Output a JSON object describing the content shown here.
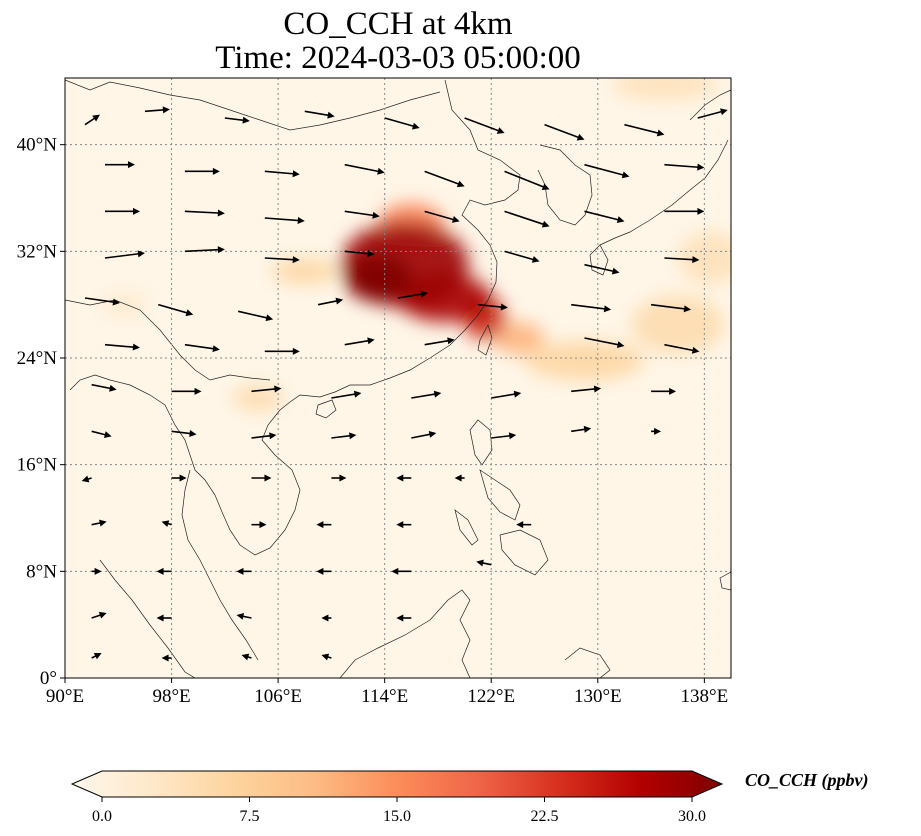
{
  "title": {
    "line1": "CO_CCH at 4km",
    "line2": "Time: 2024-03-03 05:00:00"
  },
  "map": {
    "extent": {
      "lon_min": 90,
      "lon_max": 140,
      "lat_min": 0,
      "lat_max": 45
    },
    "lat_ticks": [
      {
        "value": 40,
        "label": "40°N"
      },
      {
        "value": 32,
        "label": "32°N"
      },
      {
        "value": 24,
        "label": "24°N"
      },
      {
        "value": 16,
        "label": "16°N"
      },
      {
        "value": 8,
        "label": "8°N"
      },
      {
        "value": 0,
        "label": "0°"
      }
    ],
    "lon_ticks": [
      {
        "value": 90,
        "label": "90°E"
      },
      {
        "value": 98,
        "label": "98°E"
      },
      {
        "value": 106,
        "label": "106°E"
      },
      {
        "value": 114,
        "label": "114°E"
      },
      {
        "value": 122,
        "label": "122°E"
      },
      {
        "value": 130,
        "label": "130°E"
      },
      {
        "value": 138,
        "label": "138°E"
      }
    ],
    "gridlines": true,
    "background_color": "#fff6e8",
    "plumes": [
      {
        "lon": 115.5,
        "lat": 31.0,
        "rlon": 4.8,
        "rlat": 3.2,
        "value": 28
      },
      {
        "lon": 113.5,
        "lat": 30.0,
        "rlon": 2.5,
        "rlat": 1.8,
        "value": 30
      },
      {
        "lon": 118.5,
        "lat": 28.5,
        "rlon": 3.5,
        "rlat": 1.8,
        "value": 27
      },
      {
        "lon": 121.5,
        "lat": 27.0,
        "rlon": 1.6,
        "rlat": 1.6,
        "value": 24
      },
      {
        "lon": 116.0,
        "lat": 34.0,
        "rlon": 2.5,
        "rlat": 1.6,
        "value": 16
      },
      {
        "lon": 124.0,
        "lat": 25.5,
        "rlon": 2.0,
        "rlat": 1.2,
        "value": 12
      },
      {
        "lon": 129.0,
        "lat": 23.8,
        "rlon": 4.5,
        "rlat": 1.5,
        "value": 7
      },
      {
        "lon": 136.0,
        "lat": 26.5,
        "rlon": 3.5,
        "rlat": 2.2,
        "value": 6
      },
      {
        "lon": 138.5,
        "lat": 31.5,
        "rlon": 2.5,
        "rlat": 2.0,
        "value": 5
      },
      {
        "lon": 135.0,
        "lat": 44.5,
        "rlon": 4.0,
        "rlat": 1.2,
        "value": 5
      },
      {
        "lon": 108.0,
        "lat": 30.5,
        "rlon": 2.5,
        "rlat": 1.0,
        "value": 7
      },
      {
        "lon": 104.5,
        "lat": 21.0,
        "rlon": 2.0,
        "rlat": 1.0,
        "value": 6
      },
      {
        "lon": 94.5,
        "lat": 28.0,
        "rlon": 1.8,
        "rlat": 1.0,
        "value": 3
      }
    ],
    "wind_vectors": [
      {
        "lon": 91.5,
        "lat": 41.5,
        "u": 1.5,
        "v": 1.0
      },
      {
        "lon": 96.0,
        "lat": 42.5,
        "u": 2.5,
        "v": 0.2
      },
      {
        "lon": 102.0,
        "lat": 42.0,
        "u": 2.5,
        "v": -0.3
      },
      {
        "lon": 108.0,
        "lat": 42.5,
        "u": 3.0,
        "v": -0.5
      },
      {
        "lon": 114.0,
        "lat": 42.0,
        "u": 3.5,
        "v": -1.0
      },
      {
        "lon": 120.0,
        "lat": 42.0,
        "u": 4.0,
        "v": -1.5
      },
      {
        "lon": 126.0,
        "lat": 41.5,
        "u": 4.0,
        "v": -1.5
      },
      {
        "lon": 132.0,
        "lat": 41.5,
        "u": 4.0,
        "v": -1.0
      },
      {
        "lon": 137.5,
        "lat": 42.0,
        "u": 3.0,
        "v": 0.8
      },
      {
        "lon": 93.0,
        "lat": 38.5,
        "u": 3.0,
        "v": 0.0
      },
      {
        "lon": 99.0,
        "lat": 38.0,
        "u": 3.5,
        "v": 0.0
      },
      {
        "lon": 105.0,
        "lat": 38.0,
        "u": 3.5,
        "v": -0.3
      },
      {
        "lon": 111.0,
        "lat": 38.5,
        "u": 4.0,
        "v": -0.8
      },
      {
        "lon": 117.0,
        "lat": 38.0,
        "u": 4.0,
        "v": -1.5
      },
      {
        "lon": 123.0,
        "lat": 38.0,
        "u": 4.5,
        "v": -1.8
      },
      {
        "lon": 129.0,
        "lat": 38.5,
        "u": 4.5,
        "v": -1.2
      },
      {
        "lon": 135.0,
        "lat": 38.5,
        "u": 4.0,
        "v": -0.3
      },
      {
        "lon": 93.0,
        "lat": 35.0,
        "u": 3.5,
        "v": 0.0
      },
      {
        "lon": 99.0,
        "lat": 35.0,
        "u": 4.0,
        "v": -0.2
      },
      {
        "lon": 105.0,
        "lat": 34.5,
        "u": 4.0,
        "v": -0.3
      },
      {
        "lon": 111.0,
        "lat": 35.0,
        "u": 3.5,
        "v": -0.5
      },
      {
        "lon": 117.0,
        "lat": 35.0,
        "u": 3.5,
        "v": -1.0
      },
      {
        "lon": 123.0,
        "lat": 35.0,
        "u": 4.5,
        "v": -1.5
      },
      {
        "lon": 129.0,
        "lat": 35.0,
        "u": 4.0,
        "v": -1.0
      },
      {
        "lon": 135.0,
        "lat": 35.0,
        "u": 4.0,
        "v": 0.0
      },
      {
        "lon": 93.0,
        "lat": 31.5,
        "u": 4.0,
        "v": 0.5
      },
      {
        "lon": 99.0,
        "lat": 32.0,
        "u": 4.0,
        "v": 0.2
      },
      {
        "lon": 105.0,
        "lat": 31.5,
        "u": 3.5,
        "v": -0.2
      },
      {
        "lon": 111.0,
        "lat": 32.0,
        "u": 3.0,
        "v": -0.3
      },
      {
        "lon": 123.0,
        "lat": 32.0,
        "u": 3.5,
        "v": -1.0
      },
      {
        "lon": 129.0,
        "lat": 31.0,
        "u": 3.5,
        "v": -0.8
      },
      {
        "lon": 135.0,
        "lat": 31.5,
        "u": 3.5,
        "v": -0.2
      },
      {
        "lon": 91.5,
        "lat": 28.5,
        "u": 3.5,
        "v": -0.5
      },
      {
        "lon": 97.0,
        "lat": 28.0,
        "u": 3.5,
        "v": -1.0
      },
      {
        "lon": 103.0,
        "lat": 27.5,
        "u": 3.5,
        "v": -0.8
      },
      {
        "lon": 109.0,
        "lat": 28.0,
        "u": 2.5,
        "v": 0.5
      },
      {
        "lon": 115.0,
        "lat": 28.5,
        "u": 3.0,
        "v": 0.5
      },
      {
        "lon": 121.0,
        "lat": 28.0,
        "u": 3.0,
        "v": -0.3
      },
      {
        "lon": 128.0,
        "lat": 28.0,
        "u": 4.0,
        "v": -0.5
      },
      {
        "lon": 134.0,
        "lat": 28.0,
        "u": 4.0,
        "v": -0.5
      },
      {
        "lon": 93.0,
        "lat": 25.0,
        "u": 3.5,
        "v": -0.3
      },
      {
        "lon": 99.0,
        "lat": 25.0,
        "u": 3.5,
        "v": -0.5
      },
      {
        "lon": 105.0,
        "lat": 24.5,
        "u": 3.5,
        "v": 0.0
      },
      {
        "lon": 111.0,
        "lat": 25.0,
        "u": 3.0,
        "v": 0.5
      },
      {
        "lon": 117.0,
        "lat": 25.0,
        "u": 3.0,
        "v": 0.5
      },
      {
        "lon": 129.0,
        "lat": 25.5,
        "u": 4.0,
        "v": -0.8
      },
      {
        "lon": 135.0,
        "lat": 25.0,
        "u": 3.5,
        "v": -0.7
      },
      {
        "lon": 92.0,
        "lat": 22.0,
        "u": 2.5,
        "v": -0.5
      },
      {
        "lon": 98.0,
        "lat": 21.5,
        "u": 3.0,
        "v": 0.0
      },
      {
        "lon": 104.0,
        "lat": 21.5,
        "u": 3.0,
        "v": 0.3
      },
      {
        "lon": 110.0,
        "lat": 21.0,
        "u": 3.0,
        "v": 0.5
      },
      {
        "lon": 116.0,
        "lat": 21.0,
        "u": 3.0,
        "v": 0.5
      },
      {
        "lon": 122.0,
        "lat": 21.0,
        "u": 3.0,
        "v": 0.5
      },
      {
        "lon": 128.0,
        "lat": 21.5,
        "u": 3.0,
        "v": 0.3
      },
      {
        "lon": 134.0,
        "lat": 21.5,
        "u": 2.5,
        "v": 0.0
      },
      {
        "lon": 92.0,
        "lat": 18.5,
        "u": 2.0,
        "v": -0.5
      },
      {
        "lon": 98.0,
        "lat": 18.5,
        "u": 2.5,
        "v": -0.3
      },
      {
        "lon": 104.0,
        "lat": 18.0,
        "u": 2.5,
        "v": 0.3
      },
      {
        "lon": 110.0,
        "lat": 18.0,
        "u": 2.5,
        "v": 0.3
      },
      {
        "lon": 116.0,
        "lat": 18.0,
        "u": 2.5,
        "v": 0.5
      },
      {
        "lon": 122.0,
        "lat": 18.0,
        "u": 2.5,
        "v": 0.3
      },
      {
        "lon": 128.0,
        "lat": 18.5,
        "u": 2.0,
        "v": 0.3
      },
      {
        "lon": 134.0,
        "lat": 18.5,
        "u": 1.0,
        "v": 0.0
      },
      {
        "lon": 92.0,
        "lat": 15.0,
        "u": -1.0,
        "v": -0.3
      },
      {
        "lon": 98.0,
        "lat": 15.0,
        "u": 1.5,
        "v": 0.0
      },
      {
        "lon": 104.0,
        "lat": 15.0,
        "u": 2.0,
        "v": 0.0
      },
      {
        "lon": 110.0,
        "lat": 15.0,
        "u": 1.5,
        "v": 0.0
      },
      {
        "lon": 116.0,
        "lat": 15.0,
        "u": -1.5,
        "v": 0.0
      },
      {
        "lon": 120.0,
        "lat": 15.0,
        "u": -1.0,
        "v": 0.0
      },
      {
        "lon": 92.0,
        "lat": 11.5,
        "u": 1.5,
        "v": 0.3
      },
      {
        "lon": 98.0,
        "lat": 11.5,
        "u": -1.0,
        "v": 0.3
      },
      {
        "lon": 104.0,
        "lat": 11.5,
        "u": 1.5,
        "v": 0.0
      },
      {
        "lon": 110.0,
        "lat": 11.5,
        "u": -1.5,
        "v": 0.0
      },
      {
        "lon": 116.0,
        "lat": 11.5,
        "u": -1.5,
        "v": 0.0
      },
      {
        "lon": 125.0,
        "lat": 11.5,
        "u": -1.5,
        "v": 0.0
      },
      {
        "lon": 92.0,
        "lat": 8.0,
        "u": 1.0,
        "v": 0.0
      },
      {
        "lon": 98.0,
        "lat": 8.0,
        "u": -1.5,
        "v": 0.0
      },
      {
        "lon": 104.0,
        "lat": 8.0,
        "u": -1.5,
        "v": 0.0
      },
      {
        "lon": 110.0,
        "lat": 8.0,
        "u": -1.5,
        "v": 0.0
      },
      {
        "lon": 116.0,
        "lat": 8.0,
        "u": -2.0,
        "v": 0.0
      },
      {
        "lon": 122.0,
        "lat": 8.5,
        "u": -1.5,
        "v": 0.3
      },
      {
        "lon": 92.0,
        "lat": 4.5,
        "u": 1.5,
        "v": 0.5
      },
      {
        "lon": 98.0,
        "lat": 4.5,
        "u": -1.5,
        "v": 0.0
      },
      {
        "lon": 104.0,
        "lat": 4.5,
        "u": -1.5,
        "v": 0.3
      },
      {
        "lon": 110.0,
        "lat": 4.5,
        "u": -1.0,
        "v": 0.0
      },
      {
        "lon": 116.0,
        "lat": 4.5,
        "u": -1.5,
        "v": 0.0
      },
      {
        "lon": 92.0,
        "lat": 1.5,
        "u": 1.0,
        "v": 0.5
      },
      {
        "lon": 98.0,
        "lat": 1.5,
        "u": -1.0,
        "v": 0.0
      },
      {
        "lon": 104.0,
        "lat": 1.5,
        "u": -1.0,
        "v": 0.3
      },
      {
        "lon": 110.0,
        "lat": 1.5,
        "u": -1.0,
        "v": 0.3
      }
    ]
  },
  "colorbar": {
    "label": "CO_CCH (ppbv)",
    "min": 0.0,
    "max": 30.0,
    "ticks": [
      "0.0",
      "7.5",
      "15.0",
      "22.5",
      "30.0"
    ],
    "extend": "both",
    "colormap": "OrRd",
    "colors": [
      "#fff7ec",
      "#fee8c8",
      "#fdd49e",
      "#fdbb84",
      "#fc8d59",
      "#ef6548",
      "#d7301f",
      "#b30000",
      "#7f0000"
    ]
  }
}
